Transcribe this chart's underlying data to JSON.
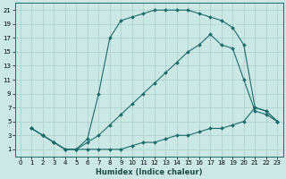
{
  "xlabel": "Humidex (Indice chaleur)",
  "background_color": "#cce8e5",
  "grid_color": "#aacfcc",
  "line_color": "#1a6b6b",
  "xlim": [
    -0.5,
    23.5
  ],
  "ylim": [
    0,
    22
  ],
  "xticks": [
    0,
    1,
    2,
    3,
    4,
    5,
    6,
    7,
    8,
    9,
    10,
    11,
    12,
    13,
    14,
    15,
    16,
    17,
    18,
    19,
    20,
    21,
    22,
    23
  ],
  "yticks": [
    1,
    3,
    5,
    7,
    9,
    11,
    13,
    15,
    17,
    19,
    21
  ],
  "curve_top_x": [
    1,
    2,
    3,
    4,
    5,
    6,
    7,
    8,
    9,
    10,
    11,
    12,
    13,
    14,
    15,
    16,
    17,
    18,
    19,
    20,
    21,
    22,
    23
  ],
  "curve_top_y": [
    4,
    3,
    2,
    1,
    1,
    2.5,
    9,
    17,
    19.5,
    20,
    20.5,
    21,
    21,
    21,
    21,
    20.5,
    20,
    19.5,
    18.5,
    16,
    7,
    6.5,
    5
  ],
  "curve_mid_x": [
    1,
    2,
    3,
    4,
    5,
    6,
    7,
    8,
    9,
    10,
    11,
    12,
    13,
    14,
    15,
    16,
    17,
    18,
    19,
    20,
    21,
    22,
    23
  ],
  "curve_mid_y": [
    4,
    3,
    2,
    1,
    1,
    2,
    3,
    4.5,
    6,
    7.5,
    9,
    10.5,
    12,
    13.5,
    15,
    16,
    17.5,
    16,
    15.5,
    11,
    6.5,
    6,
    5
  ],
  "curve_bot_x": [
    1,
    2,
    3,
    4,
    5,
    6,
    7,
    8,
    9,
    10,
    11,
    12,
    13,
    14,
    15,
    16,
    17,
    18,
    19,
    20,
    21,
    22,
    23
  ],
  "curve_bot_y": [
    4,
    3,
    2,
    1,
    1,
    1,
    1,
    1,
    1,
    1.5,
    2,
    2,
    2.5,
    3,
    3,
    3.5,
    4,
    4,
    4.5,
    5,
    7,
    6.5,
    5
  ]
}
